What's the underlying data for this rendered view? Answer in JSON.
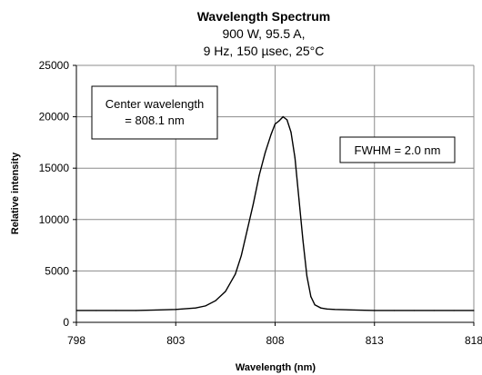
{
  "chart_data": {
    "type": "line",
    "title": "Wavelength Spectrum",
    "subtitle_lines": [
      "900 W, 95.5 A,",
      "9 Hz, 150 µsec, 25°C"
    ],
    "xlabel": "Wavelength (nm)",
    "ylabel": "Relative intensity",
    "xlim": [
      798,
      818
    ],
    "ylim": [
      0,
      25000
    ],
    "x_ticks": [
      798,
      803,
      808,
      813,
      818
    ],
    "y_ticks": [
      0,
      5000,
      10000,
      15000,
      20000,
      25000
    ],
    "grid": true,
    "series": [
      {
        "x": [
          798,
          799,
          800,
          801,
          802,
          803,
          804,
          804.5,
          805,
          805.5,
          806,
          806.3,
          806.6,
          806.9,
          807.2,
          807.5,
          807.8,
          808,
          808.2,
          808.4,
          808.6,
          808.8,
          809,
          809.2,
          809.4,
          809.6,
          809.8,
          810,
          810.3,
          810.6,
          811,
          812,
          813,
          814,
          815,
          816,
          817,
          818
        ],
        "y": [
          1150,
          1150,
          1150,
          1150,
          1200,
          1250,
          1400,
          1600,
          2100,
          3000,
          4700,
          6500,
          9000,
          11500,
          14300,
          16500,
          18300,
          19300,
          19600,
          20000,
          19700,
          18500,
          16000,
          12000,
          8000,
          4500,
          2500,
          1700,
          1400,
          1300,
          1250,
          1200,
          1150,
          1150,
          1150,
          1150,
          1150,
          1150
        ]
      }
    ],
    "annotations": [
      {
        "lines": [
          "Center wavelength",
          "= 808.1 nm"
        ]
      },
      {
        "lines": [
          "FWHM = 2.0 nm"
        ]
      }
    ]
  }
}
